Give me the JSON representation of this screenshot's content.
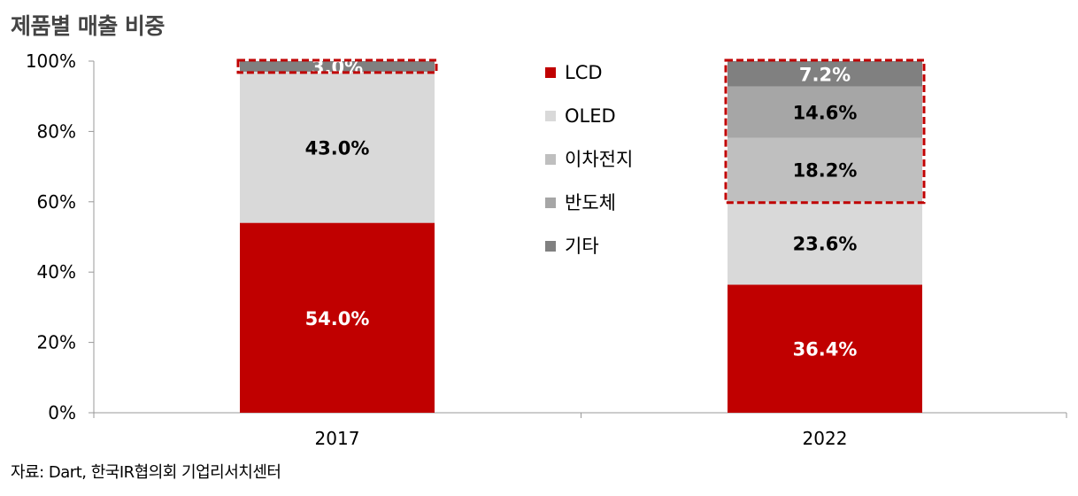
{
  "title": "제품별 매출 비중",
  "source": "자료: Dart, 한국IR협의회 기업리서치센터",
  "chart_data": {
    "type": "bar",
    "stacked": true,
    "categories": [
      "2017",
      "2022"
    ],
    "series": [
      {
        "name": "LCD",
        "color": "#c00000",
        "values": [
          54.0,
          36.4
        ],
        "labels": [
          "54.0%",
          "36.4%"
        ],
        "label_color": "#ffffff"
      },
      {
        "name": "OLED",
        "color": "#d9d9d9",
        "values": [
          43.0,
          23.6
        ],
        "labels": [
          "43.0%",
          "23.6%"
        ],
        "label_color": "#000000"
      },
      {
        "name": "이차전지",
        "color": "#bfbfbf",
        "values": [
          0,
          18.2
        ],
        "labels": [
          "",
          "18.2%"
        ],
        "label_color": "#000000"
      },
      {
        "name": "반도체",
        "color": "#a6a6a6",
        "values": [
          0,
          14.6
        ],
        "labels": [
          "",
          "14.6%"
        ],
        "label_color": "#000000"
      },
      {
        "name": "기타",
        "color": "#808080",
        "values": [
          3.0,
          7.2
        ],
        "labels": [
          "3.0%",
          "7.2%"
        ],
        "label_color": "#ffffff"
      }
    ],
    "yticks": [
      "0%",
      "20%",
      "40%",
      "60%",
      "80%",
      "100%"
    ],
    "ylim": [
      0,
      100
    ],
    "legend_position": "top-center",
    "highlights": [
      {
        "category": "2017",
        "from": 97.0,
        "to": 100,
        "color": "#c00000"
      },
      {
        "category": "2022",
        "from": 60.0,
        "to": 100,
        "color": "#c00000"
      }
    ]
  }
}
